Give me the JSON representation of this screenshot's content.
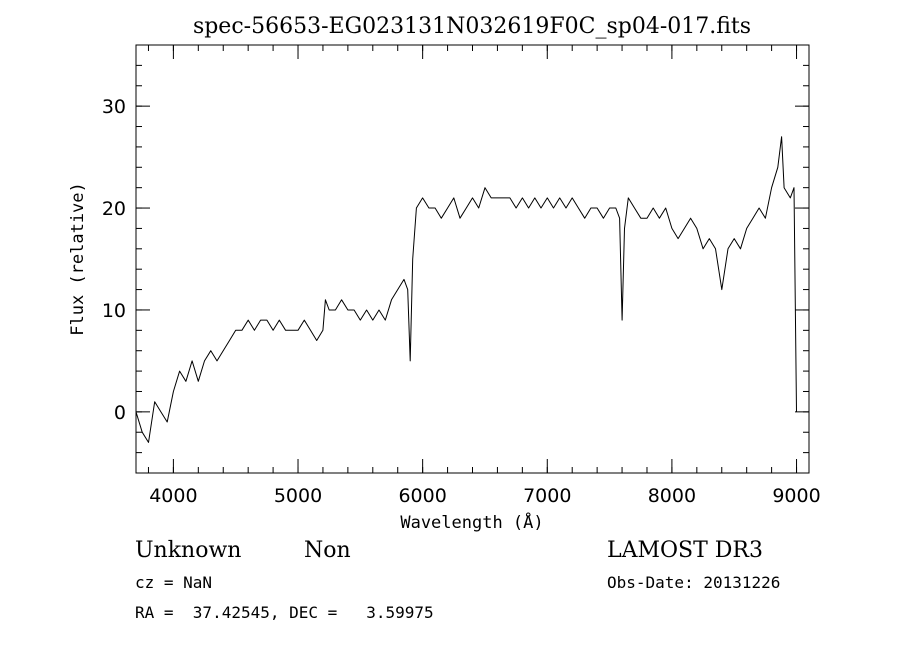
{
  "chart_data": {
    "type": "line",
    "title": "spec-56653-EG023131N032619F0C_sp04-017.fits",
    "xlabel": "Wavelength (Å)",
    "ylabel": "Flux (relative)",
    "xlim": [
      3700,
      9100
    ],
    "ylim": [
      -6,
      36
    ],
    "xticks": [
      4000,
      5000,
      6000,
      7000,
      8000,
      9000
    ],
    "yticks": [
      0,
      10,
      20,
      30
    ],
    "xtick_labels": [
      "4000",
      "5000",
      "6000",
      "7000",
      "8000",
      "9000"
    ],
    "ytick_labels": [
      "0",
      "10",
      "20",
      "30"
    ],
    "grid": false,
    "series": [
      {
        "x": [
          3700,
          3750,
          3800,
          3850,
          3900,
          3950,
          4000,
          4050,
          4100,
          4150,
          4200,
          4250,
          4300,
          4350,
          4400,
          4450,
          4500,
          4550,
          4600,
          4650,
          4700,
          4750,
          4800,
          4850,
          4900,
          4950,
          5000,
          5050,
          5100,
          5150,
          5200,
          5220,
          5250,
          5300,
          5350,
          5400,
          5450,
          5500,
          5550,
          5600,
          5650,
          5700,
          5750,
          5800,
          5850,
          5880,
          5900,
          5920,
          5950,
          6000,
          6050,
          6100,
          6150,
          6200,
          6250,
          6300,
          6350,
          6400,
          6450,
          6500,
          6550,
          6600,
          6650,
          6700,
          6750,
          6800,
          6850,
          6900,
          6950,
          7000,
          7050,
          7100,
          7150,
          7200,
          7250,
          7300,
          7350,
          7400,
          7450,
          7500,
          7550,
          7580,
          7600,
          7620,
          7650,
          7700,
          7750,
          7800,
          7850,
          7900,
          7950,
          8000,
          8050,
          8100,
          8150,
          8200,
          8250,
          8300,
          8350,
          8400,
          8450,
          8500,
          8550,
          8600,
          8650,
          8700,
          8750,
          8800,
          8850,
          8880,
          8900,
          8950,
          8980,
          9000
        ],
        "y": [
          0,
          -2,
          -3,
          1,
          0,
          -1,
          2,
          4,
          3,
          5,
          3,
          5,
          6,
          5,
          6,
          7,
          8,
          8,
          9,
          8,
          9,
          9,
          8,
          9,
          8,
          8,
          8,
          9,
          8,
          7,
          8,
          11,
          10,
          10,
          11,
          10,
          10,
          9,
          10,
          9,
          10,
          9,
          11,
          12,
          13,
          12,
          5,
          15,
          20,
          21,
          20,
          20,
          19,
          20,
          21,
          19,
          20,
          21,
          20,
          22,
          21,
          21,
          21,
          21,
          20,
          21,
          20,
          21,
          20,
          21,
          20,
          21,
          20,
          21,
          20,
          19,
          20,
          20,
          19,
          20,
          20,
          19,
          9,
          18,
          21,
          20,
          19,
          19,
          20,
          19,
          20,
          18,
          17,
          18,
          19,
          18,
          16,
          17,
          16,
          12,
          16,
          17,
          16,
          18,
          19,
          20,
          19,
          22,
          24,
          27,
          22,
          21,
          22,
          0
        ]
      }
    ]
  },
  "footer": {
    "object_class": "Unknown",
    "subclass": "Non",
    "survey": "LAMOST DR3",
    "cz": "cz = NaN",
    "obs_date": "Obs-Date: 20131226",
    "coords": "RA =  37.42545, DEC =   3.59975"
  }
}
